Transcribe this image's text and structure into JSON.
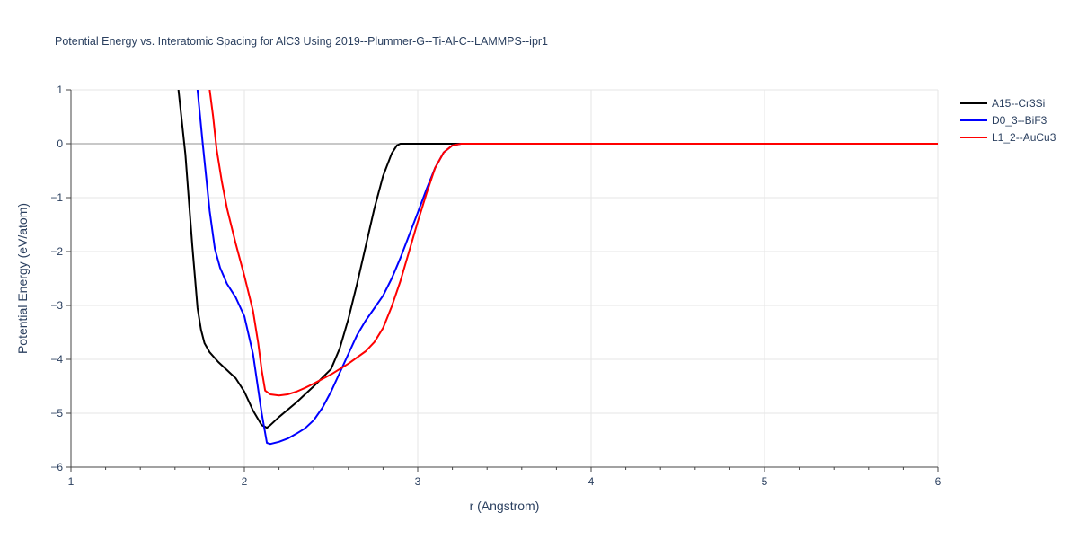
{
  "chart_data": {
    "type": "line",
    "title": "Potential Energy vs. Interatomic Spacing for AlC3 Using 2019--Plummer-G--Ti-Al-C--LAMMPS--ipr1",
    "xlabel": "r (Angstrom)",
    "ylabel": "Potential Energy (eV/atom)",
    "xlim": [
      1,
      6
    ],
    "ylim": [
      -6,
      1
    ],
    "xticks": [
      1,
      2,
      3,
      4,
      5,
      6
    ],
    "xtick_labels": [
      "1",
      "2",
      "3",
      "4",
      "5",
      "6"
    ],
    "yticks": [
      1,
      0,
      -1,
      -2,
      -3,
      -4,
      -5,
      -6
    ],
    "ytick_labels": [
      "1",
      "0",
      "−1",
      "−2",
      "−3",
      "−4",
      "−5",
      "−6"
    ],
    "grid": true,
    "legend_position": "top-right",
    "series": [
      {
        "name": "A15--Cr3Si",
        "color": "#000000",
        "x": [
          1.62,
          1.66,
          1.7,
          1.73,
          1.75,
          1.77,
          1.8,
          1.85,
          1.9,
          1.95,
          2.0,
          2.05,
          2.1,
          2.13,
          2.15,
          2.2,
          2.3,
          2.4,
          2.5,
          2.55,
          2.6,
          2.65,
          2.7,
          2.75,
          2.8,
          2.85,
          2.88,
          2.9,
          2.95,
          3.0,
          3.2,
          6.0
        ],
        "y": [
          1.0,
          -0.2,
          -1.9,
          -3.05,
          -3.45,
          -3.7,
          -3.87,
          -4.05,
          -4.2,
          -4.35,
          -4.6,
          -4.95,
          -5.22,
          -5.27,
          -5.22,
          -5.07,
          -4.8,
          -4.5,
          -4.18,
          -3.8,
          -3.25,
          -2.6,
          -1.9,
          -1.2,
          -0.6,
          -0.18,
          -0.03,
          0.0,
          0.0,
          0.0,
          0.0,
          0.0
        ]
      },
      {
        "name": "D0_3--BiF3",
        "color": "#0000ff",
        "x": [
          1.73,
          1.76,
          1.8,
          1.83,
          1.86,
          1.9,
          1.95,
          2.0,
          2.05,
          2.1,
          2.13,
          2.15,
          2.2,
          2.25,
          2.3,
          2.35,
          2.4,
          2.45,
          2.5,
          2.55,
          2.6,
          2.65,
          2.7,
          2.75,
          2.8,
          2.85,
          2.9,
          2.95,
          3.0,
          3.05,
          3.1,
          3.15,
          3.2,
          3.25,
          3.3,
          6.0
        ],
        "y": [
          1.0,
          0.0,
          -1.25,
          -1.95,
          -2.3,
          -2.6,
          -2.85,
          -3.2,
          -3.9,
          -5.0,
          -5.55,
          -5.57,
          -5.53,
          -5.47,
          -5.38,
          -5.28,
          -5.13,
          -4.9,
          -4.6,
          -4.25,
          -3.9,
          -3.55,
          -3.28,
          -3.05,
          -2.82,
          -2.5,
          -2.12,
          -1.7,
          -1.28,
          -0.85,
          -0.45,
          -0.16,
          -0.03,
          0.0,
          0.0,
          0.0
        ]
      },
      {
        "name": "L1_2--AuCu3",
        "color": "#ff0000",
        "x": [
          1.8,
          1.82,
          1.84,
          1.87,
          1.9,
          1.95,
          2.0,
          2.05,
          2.08,
          2.1,
          2.12,
          2.15,
          2.2,
          2.25,
          2.3,
          2.35,
          2.4,
          2.5,
          2.6,
          2.7,
          2.75,
          2.8,
          2.85,
          2.9,
          2.95,
          3.0,
          3.05,
          3.1,
          3.15,
          3.2,
          3.25,
          3.3,
          6.0
        ],
        "y": [
          1.0,
          0.5,
          -0.1,
          -0.7,
          -1.2,
          -1.85,
          -2.45,
          -3.1,
          -3.7,
          -4.2,
          -4.58,
          -4.65,
          -4.67,
          -4.65,
          -4.6,
          -4.53,
          -4.45,
          -4.28,
          -4.08,
          -3.85,
          -3.68,
          -3.42,
          -3.02,
          -2.55,
          -2.0,
          -1.45,
          -0.93,
          -0.45,
          -0.16,
          -0.03,
          0.0,
          0.0,
          0.0
        ]
      }
    ]
  }
}
